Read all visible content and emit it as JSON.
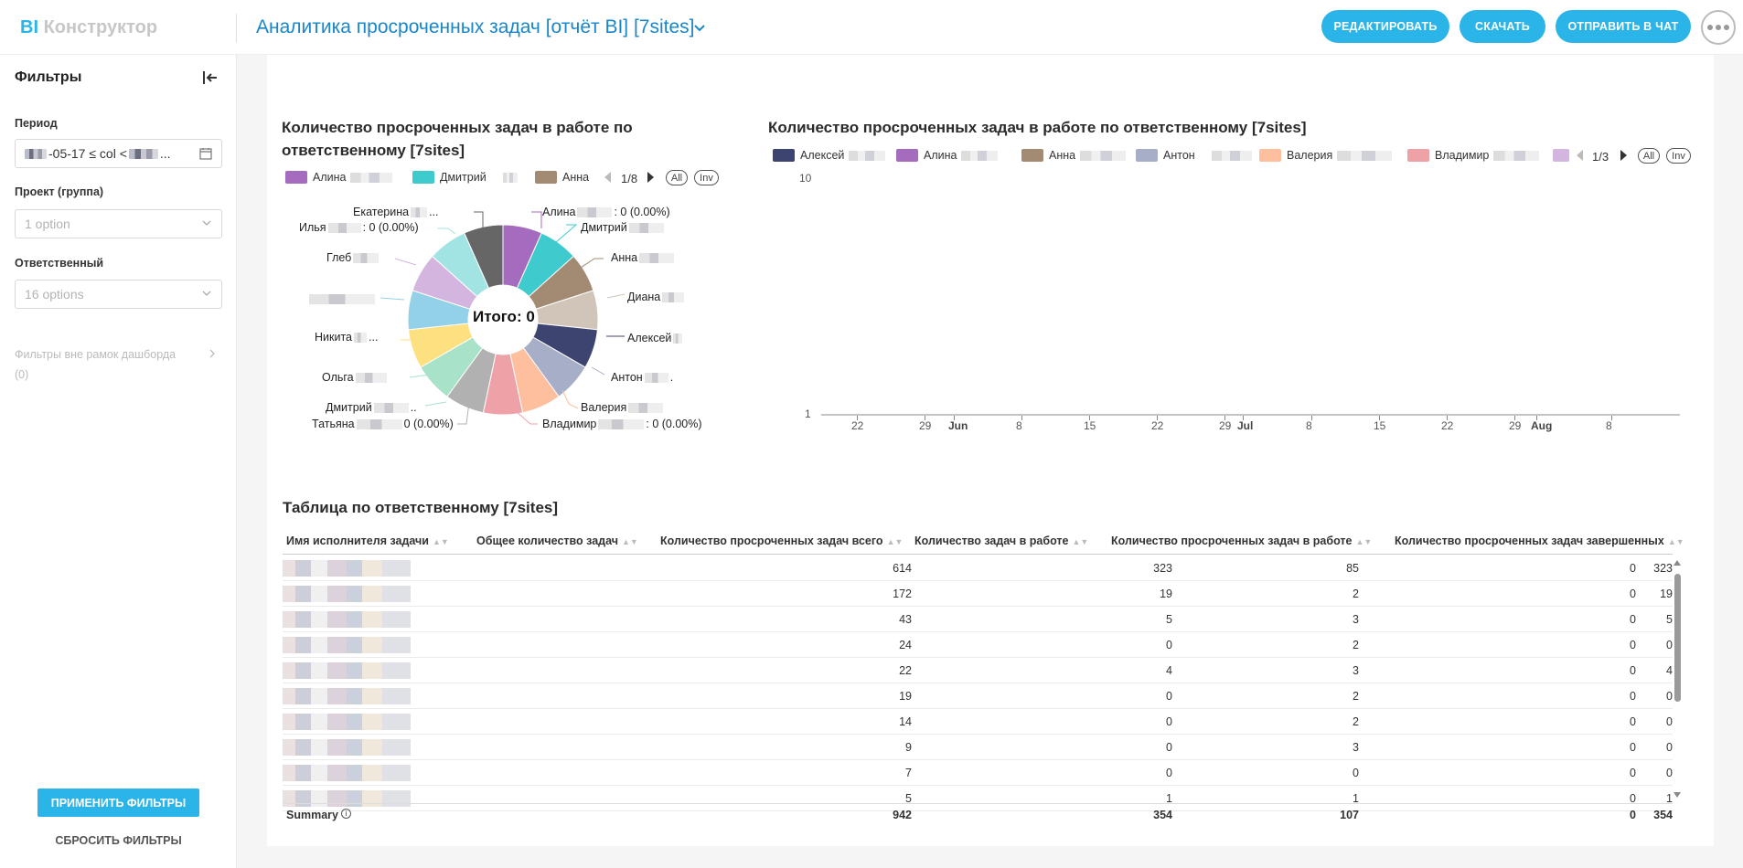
{
  "header": {
    "logo_bi": "BI",
    "logo_name": "Конструктор",
    "title": "Аналитика просроченных задач [отчёт BI] [7sites]",
    "buttons": {
      "edit": "РЕДАКТИРОВАТЬ",
      "download": "СКАЧАТЬ",
      "send_chat": "ОТПРАВИТЬ В ЧАТ"
    },
    "icons": [
      "chevron-down-icon",
      "more-icon"
    ]
  },
  "sidebar": {
    "title": "Фильтры",
    "period_label": "Период",
    "period_value": "-05-17 ≤ col <",
    "period_suffix": "...",
    "project_label": "Проект (группа)",
    "project_value": "1 option",
    "assignee_label": "Ответственный",
    "assignee_value": "16 options",
    "outside_filters": "Фильтры вне рамок дашборда",
    "outside_count": "(0)",
    "apply": "ПРИМЕНИТЬ ФИЛЬТРЫ",
    "reset": "СБРОСИТЬ ФИЛЬТРЫ"
  },
  "pie": {
    "title_line1": "Количество просроченных задач в работе по",
    "title_line2": "ответственному [7sites]",
    "legend": [
      {
        "name": "Алина",
        "color": "#a46bbf"
      },
      {
        "name": "Дмитрий",
        "color": "#3fcbce"
      },
      {
        "name": "Анна",
        "color": "#a38b73"
      }
    ],
    "pager": "1/8",
    "all": "All",
    "inv": "Inv",
    "total": "Итого: 0",
    "labels": {
      "alina": "Алина",
      "alina_val": ": 0 (0.00%)",
      "dmitriy": "Дмитрий",
      "anna": "Анна",
      "diana": "Диана",
      "aleksey": "Алексей",
      "anton": "Антон",
      "anton_suffix": ".",
      "valeriya": "Валерия",
      "vladimir": "Владимир",
      "vladimir_val": ": 0 (0.00%)",
      "tatyana": "Татьяна",
      "tatyana_val": "0 (0.00%)",
      "dmitriy2": "Дмитрий",
      "dmitriy2_suffix": "..",
      "olga": "Ольга",
      "nikita": "Никита",
      "nikita_suffix": "...",
      "gleb": "Глеб",
      "ilya": "Илья",
      "ilya_val": ": 0 (0.00%)",
      "ekaterina": "Екатерина",
      "ekaterina_suffix": "..."
    }
  },
  "line": {
    "title": "Количество просроченных задач в работе по ответственному [7sites]",
    "legend": [
      {
        "name": "Алексей",
        "color": "#3d4470"
      },
      {
        "name": "Алина",
        "color": "#a46bbf"
      },
      {
        "name": "Анна",
        "color": "#a38b73"
      },
      {
        "name": "Антон",
        "color": "#a7aec8"
      },
      {
        "name": "Валерия",
        "color": "#fdbf9e"
      },
      {
        "name": "Владимир",
        "color": "#eea2a8"
      }
    ],
    "pager": "1/3",
    "all": "All",
    "inv": "Inv",
    "y_ticks": [
      "10",
      "1"
    ],
    "x_ticks": [
      "22",
      "29",
      "Jun",
      "8",
      "15",
      "22",
      "29",
      "Jul",
      "8",
      "15",
      "22",
      "29",
      "Aug",
      "8"
    ]
  },
  "chart_data": {
    "type": "pie",
    "title": "Количество просроченных задач в работе по ответственному [7sites]",
    "slices": [
      {
        "label": "Алина",
        "value": 0,
        "color": "#a46bbf"
      },
      {
        "label": "Дмитрий",
        "value": 0,
        "color": "#3fcbce"
      },
      {
        "label": "Анна",
        "value": 0,
        "color": "#a38b73"
      },
      {
        "label": "Диана",
        "value": 0,
        "color": "#d1c4b8"
      },
      {
        "label": "Алексей",
        "value": 0,
        "color": "#3d4470"
      },
      {
        "label": "Антон",
        "value": 0,
        "color": "#a7aec8"
      },
      {
        "label": "Валерия",
        "value": 0,
        "color": "#fdbf9e"
      },
      {
        "label": "Владимир",
        "value": 0,
        "color": "#eea2a8"
      },
      {
        "label": "Татьяна",
        "value": 0,
        "color": "#b1b1b1"
      },
      {
        "label": "Дмитрий",
        "value": 0,
        "color": "#a8e2c8"
      },
      {
        "label": "Ольга",
        "value": 0,
        "color": "#fde080"
      },
      {
        "label": "Никита",
        "value": 0,
        "color": "#93d1e8"
      },
      {
        "label": "Глеб",
        "value": 0,
        "color": "#d4b5e0"
      },
      {
        "label": "Илья",
        "value": 0,
        "color": "#a2e4e4"
      },
      {
        "label": "Екатерина",
        "value": 0,
        "color": "#666666"
      }
    ]
  },
  "table": {
    "title": "Таблица по ответственному [7sites]",
    "columns": [
      "Имя исполнителя задачи",
      "Общее количество задач",
      "Количество просроченных задач всего",
      "Количество задач в работе",
      "Количество просроченных задач в работе",
      "Количество просроченных задач завершенных"
    ],
    "rows": [
      [
        "614",
        "323",
        "85",
        "0",
        "323"
      ],
      [
        "172",
        "19",
        "2",
        "0",
        "19"
      ],
      [
        "43",
        "5",
        "3",
        "0",
        "5"
      ],
      [
        "24",
        "0",
        "2",
        "0",
        "0"
      ],
      [
        "22",
        "4",
        "3",
        "0",
        "4"
      ],
      [
        "19",
        "0",
        "2",
        "0",
        "0"
      ],
      [
        "14",
        "0",
        "2",
        "0",
        "0"
      ],
      [
        "9",
        "0",
        "3",
        "0",
        "0"
      ],
      [
        "7",
        "0",
        "0",
        "0",
        "0"
      ],
      [
        "5",
        "1",
        "1",
        "0",
        "1"
      ]
    ],
    "summary_label": "Summary",
    "summary": [
      "942",
      "354",
      "107",
      "0",
      "354"
    ]
  }
}
